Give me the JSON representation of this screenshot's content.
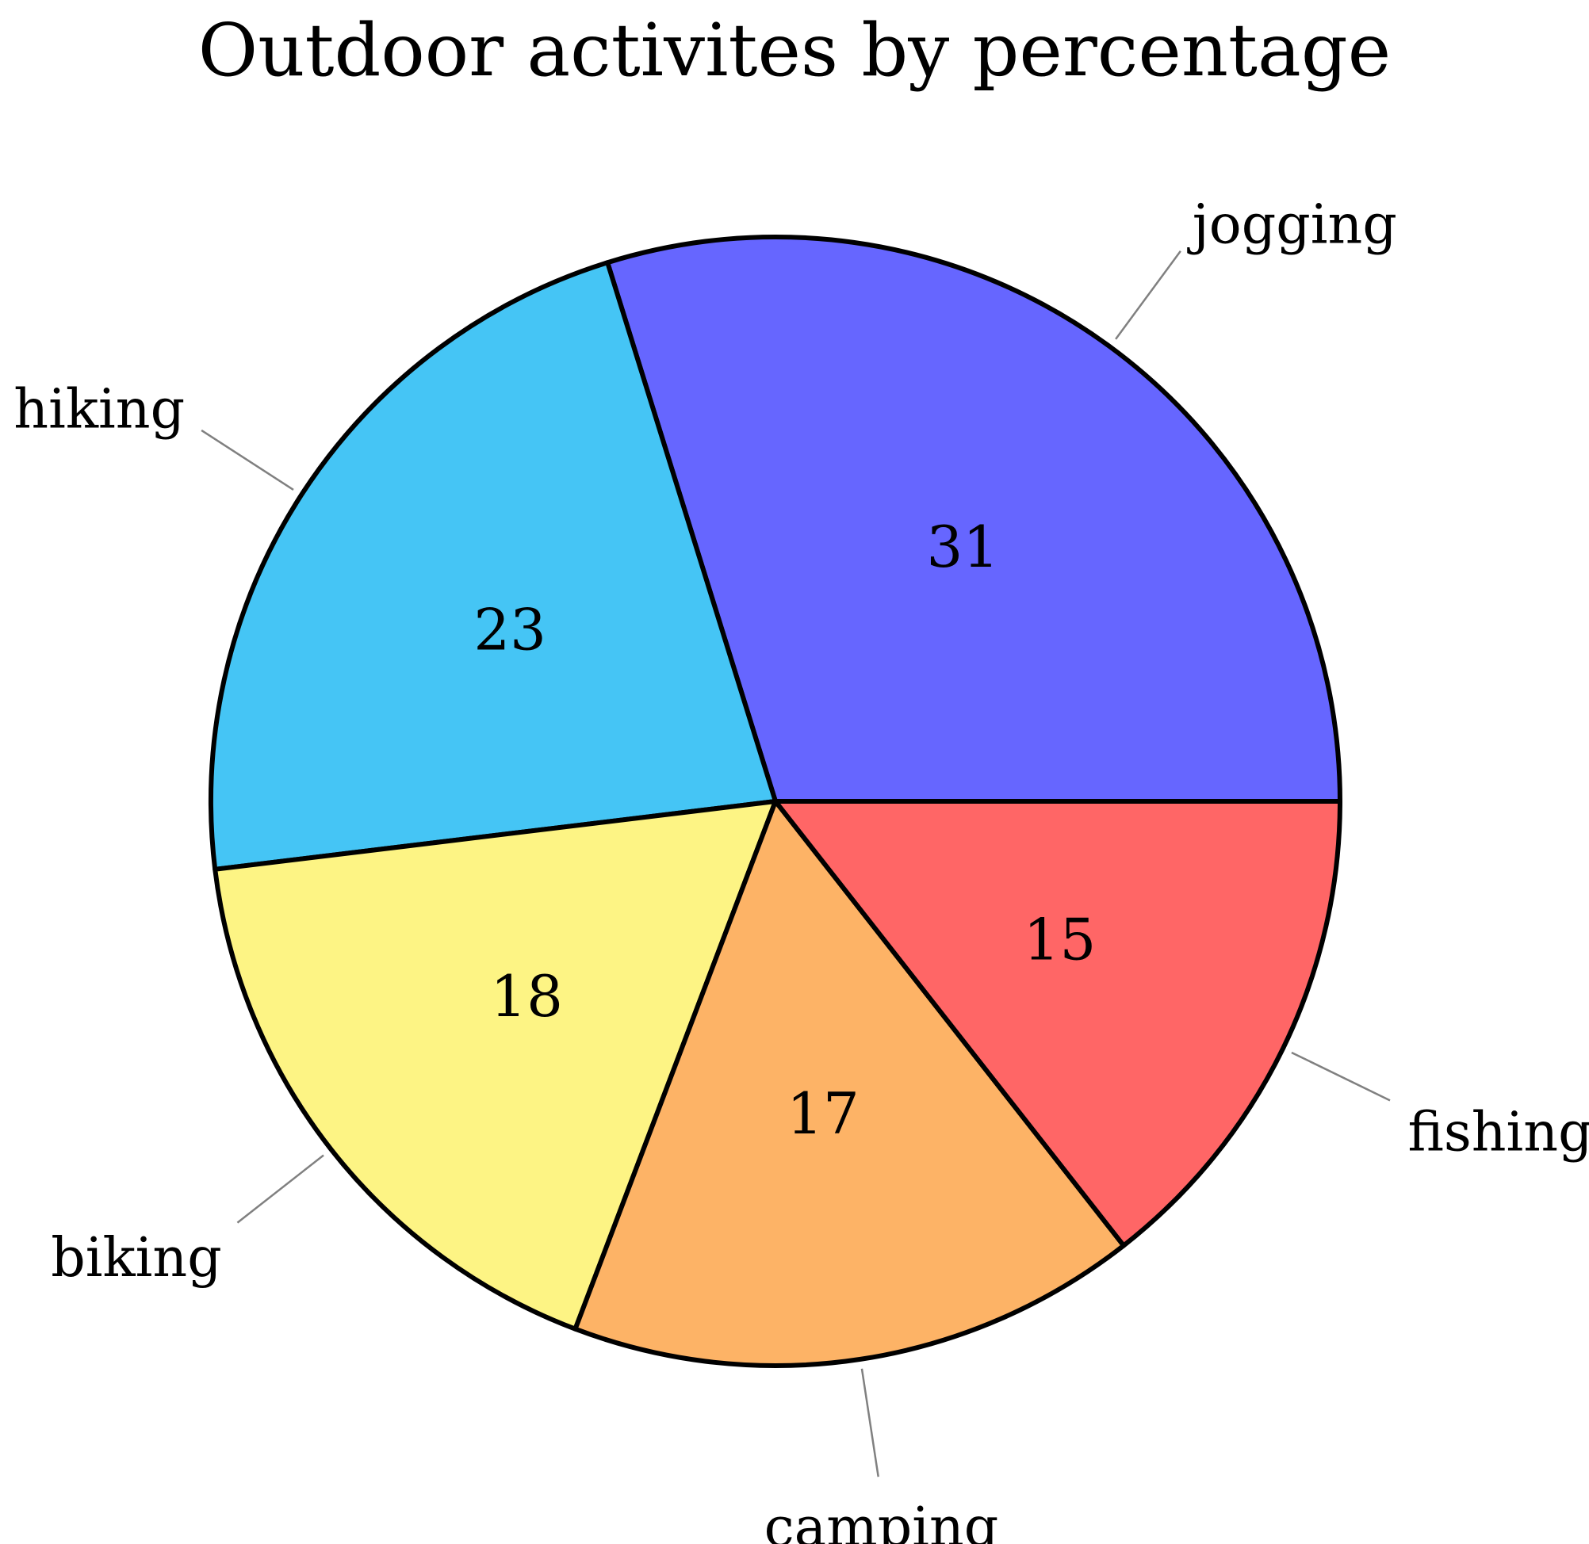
{
  "chart_data": {
    "type": "pie",
    "title": "Outdoor activites by percentage",
    "categories": [
      "jogging",
      "hiking",
      "biking",
      "camping",
      "fishing"
    ],
    "values": [
      31,
      23,
      18,
      17,
      15
    ],
    "value_labels": [
      "31",
      "23",
      "18",
      "17",
      "15"
    ],
    "colors": [
      "#6666ff",
      "#45c5f5",
      "#fdf484",
      "#fdb366",
      "#ff6666"
    ],
    "start_angle_deg": 0,
    "direction": "counterclockwise",
    "legend": "none"
  }
}
